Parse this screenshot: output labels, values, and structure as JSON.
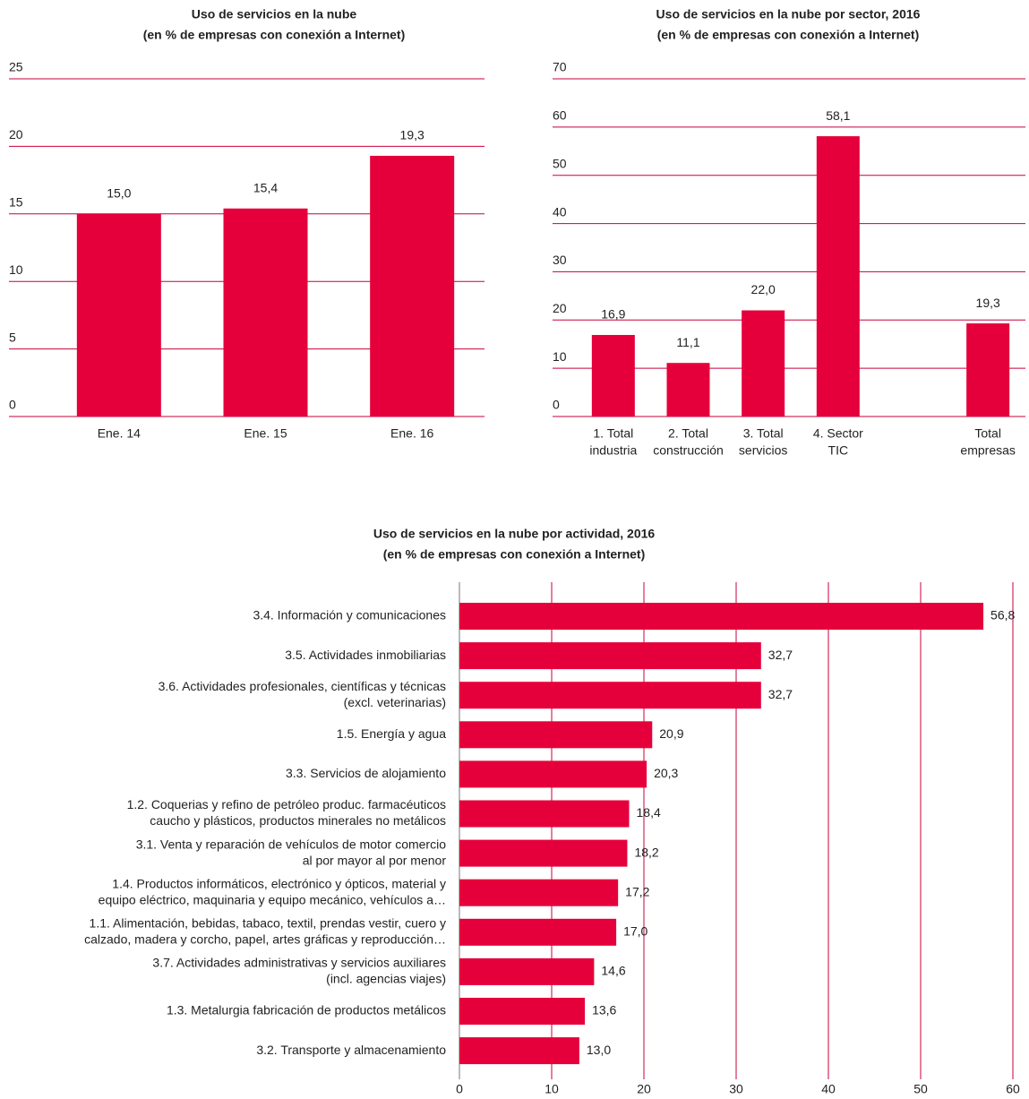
{
  "chart_data": [
    {
      "type": "bar",
      "title": "Uso de servicios en la nube",
      "subtitle": "(en % de empresas con conexión a Internet)",
      "categories": [
        "Ene. 14",
        "Ene. 15",
        "Ene. 16"
      ],
      "values": [
        15.0,
        15.4,
        19.3
      ],
      "value_labels": [
        "15,0",
        "15,4",
        "19,3"
      ],
      "ylim": [
        0,
        25
      ],
      "yticks": [
        0,
        5,
        10,
        15,
        20,
        25
      ],
      "color": "#e5003b",
      "grid": true
    },
    {
      "type": "bar",
      "title": "Uso de servicios en la nube por sector, 2016",
      "subtitle": "(en % de empresas con conexión a Internet)",
      "categories": [
        [
          "1. Total",
          "industria"
        ],
        [
          "2. Total",
          "construcción"
        ],
        [
          "3. Total",
          "servicios"
        ],
        [
          "4. Sector",
          "TIC"
        ],
        null,
        [
          "Total",
          "empresas"
        ]
      ],
      "values": [
        16.9,
        11.1,
        22.0,
        58.1,
        null,
        19.3
      ],
      "value_labels": [
        "16,9",
        "11,1",
        "22,0",
        "58,1",
        null,
        "19,3"
      ],
      "ylim": [
        0,
        70
      ],
      "yticks": [
        0,
        10,
        20,
        30,
        40,
        50,
        60,
        70
      ],
      "color": "#e5003b",
      "grid": true
    },
    {
      "type": "barh",
      "title": "Uso de servicios en la nube por actividad, 2016",
      "subtitle": "(en % de empresas con conexión a Internet)",
      "categories": [
        [
          "3.4. Información y comunicaciones"
        ],
        [
          "3.5. Actividades inmobiliarias"
        ],
        [
          "3.6. Actividades profesionales, científicas y técnicas",
          "(excl. veterinarias)"
        ],
        [
          "1.5. Energía y agua"
        ],
        [
          "3.3. Servicios de alojamiento"
        ],
        [
          "1.2. Coquerias y refino de petróleo produc. farmacéuticos",
          "caucho y plásticos, productos minerales no metálicos"
        ],
        [
          "3.1. Venta y reparación de vehículos de motor comercio",
          "al por mayor al por menor"
        ],
        [
          "1.4. Productos informáticos, electrónico y ópticos, material y",
          "equipo eléctrico, maquinaria y equipo mecánico, vehículos a…"
        ],
        [
          "1.1. Alimentación, bebidas, tabaco, textil, prendas vestir, cuero y",
          "calzado, madera y corcho, papel, artes gráficas y reproducción…"
        ],
        [
          "3.7. Actividades administrativas y servicios auxiliares",
          "(incl. agencias viajes)"
        ],
        [
          "1.3. Metalurgia fabricación de productos metálicos"
        ],
        [
          "3.2. Transporte y almacenamiento"
        ]
      ],
      "values": [
        56.8,
        32.7,
        32.7,
        20.9,
        20.3,
        18.4,
        18.2,
        17.2,
        17.0,
        14.6,
        13.6,
        13.0
      ],
      "value_labels": [
        "56,8",
        "32,7",
        "32,7",
        "20,9",
        "20,3",
        "18,4",
        "18,2",
        "17,2",
        "17,0",
        "14,6",
        "13,6",
        "13,0"
      ],
      "xlim": [
        0,
        60
      ],
      "xticks": [
        0,
        10,
        20,
        30,
        40,
        50,
        60
      ],
      "color": "#e5003b",
      "grid": true
    }
  ]
}
